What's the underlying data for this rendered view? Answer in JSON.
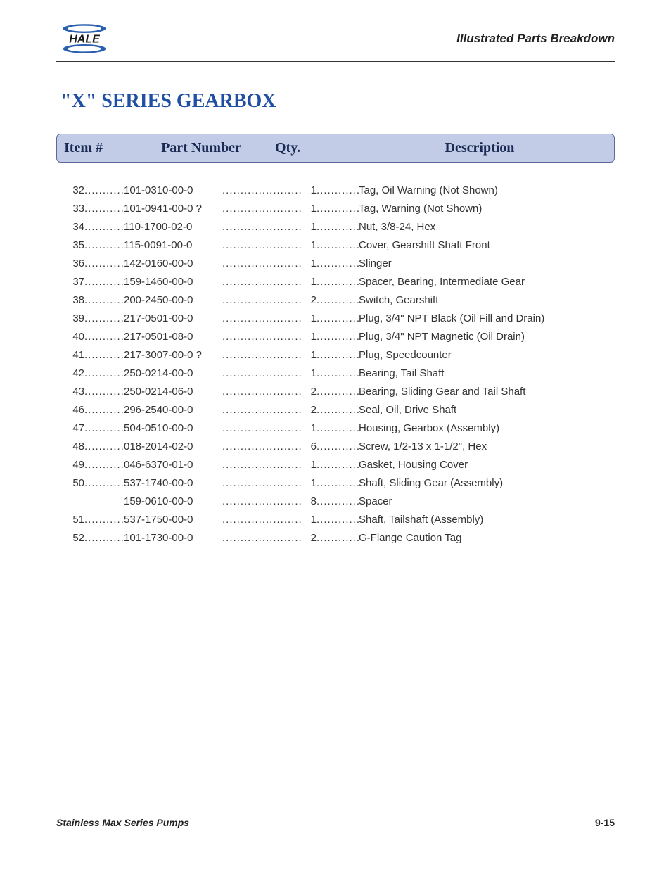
{
  "header": {
    "section_title": "Illustrated Parts Breakdown",
    "logo_text": "HALE",
    "logo_colors": {
      "swoosh": "#2a5fb0",
      "text": "#1a1a1a"
    }
  },
  "title": "\"X\" SERIES GEARBOX",
  "table": {
    "header_bg": "#c3cce6",
    "header_border": "#5a6a9a",
    "columns": {
      "item": "Item #",
      "part": "Part Number",
      "qty": "Qty.",
      "desc": "Description"
    },
    "rows": [
      {
        "item": "32",
        "part": "101-0310-00-0",
        "qty": "1",
        "desc": "Tag, Oil Warning (Not Shown)"
      },
      {
        "item": "33",
        "part": "101-0941-00-0 ?",
        "qty": "1",
        "desc": "Tag, Warning (Not Shown)"
      },
      {
        "item": "34",
        "part": "110-1700-02-0",
        "qty": "1",
        "desc": "Nut, 3/8-24, Hex"
      },
      {
        "item": "35",
        "part": "115-0091-00-0",
        "qty": "1",
        "desc": "Cover, Gearshift Shaft Front"
      },
      {
        "item": "36",
        "part": "142-0160-00-0",
        "qty": "1",
        "desc": "Slinger"
      },
      {
        "item": "37",
        "part": "159-1460-00-0",
        "qty": "1",
        "desc": "Spacer, Bearing, Intermediate Gear"
      },
      {
        "item": "38",
        "part": "200-2450-00-0",
        "qty": "2",
        "desc": "Switch, Gearshift"
      },
      {
        "item": "39",
        "part": "217-0501-00-0",
        "qty": "1",
        "desc": "Plug, 3/4\" NPT Black (Oil Fill and Drain)"
      },
      {
        "item": "40",
        "part": "217-0501-08-0",
        "qty": "1",
        "desc": "Plug, 3/4\" NPT Magnetic (Oil Drain)"
      },
      {
        "item": "41",
        "part": "217-3007-00-0 ?",
        "qty": "1",
        "desc": "Plug, Speedcounter"
      },
      {
        "item": "42",
        "part": "250-0214-00-0",
        "qty": "1",
        "desc": "Bearing, Tail Shaft"
      },
      {
        "item": "43",
        "part": "250-0214-06-0",
        "qty": "2",
        "desc": "Bearing, Sliding Gear and Tail Shaft"
      },
      {
        "item": "46",
        "part": "296-2540-00-0",
        "qty": "2",
        "desc": "Seal, Oil, Drive Shaft"
      },
      {
        "item": "47",
        "part": "504-0510-00-0",
        "qty": "1",
        "desc": "Housing, Gearbox (Assembly)"
      },
      {
        "item": "48",
        "part": "018-2014-02-0",
        "qty": "6",
        "desc": "Screw, 1/2-13 x 1-1/2\", Hex"
      },
      {
        "item": "49",
        "part": "046-6370-01-0",
        "qty": "1",
        "desc": "Gasket, Housing Cover"
      },
      {
        "item": "50",
        "part": "537-1740-00-0",
        "qty": "1",
        "desc": "Shaft, Sliding Gear (Assembly)"
      },
      {
        "item": "",
        "part": "159-0610-00-0",
        "qty": "8",
        "desc": "Spacer"
      },
      {
        "item": "51",
        "part": "537-1750-00-0",
        "qty": "1",
        "desc": "Shaft, Tailshaft (Assembly)"
      },
      {
        "item": "52",
        "part": "101-1730-00-0",
        "qty": "2",
        "desc": "G-Flange Caution Tag"
      }
    ]
  },
  "footer": {
    "left": "Stainless Max Series Pumps",
    "right": "9-15"
  },
  "colors": {
    "title": "#1f4fa3",
    "text": "#333333",
    "rule": "#333333",
    "background": "#ffffff"
  },
  "dots": "............................................................"
}
